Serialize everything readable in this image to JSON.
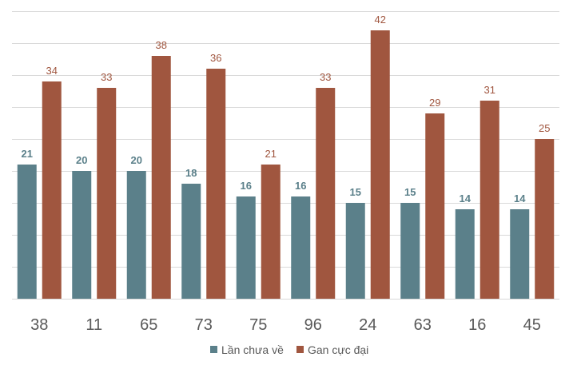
{
  "chart_data": {
    "type": "bar",
    "categories": [
      "38",
      "11",
      "65",
      "73",
      "75",
      "96",
      "24",
      "63",
      "16",
      "45"
    ],
    "series": [
      {
        "name": "Lần chưa về",
        "color": "#5b808a",
        "values": [
          21,
          20,
          20,
          18,
          16,
          16,
          15,
          15,
          14,
          14
        ]
      },
      {
        "name": "Gan cực đại",
        "color": "#a0563f",
        "values": [
          34,
          33,
          38,
          36,
          21,
          33,
          42,
          29,
          31,
          25
        ]
      }
    ],
    "ylim": [
      0,
      45
    ],
    "y_grid_step": 5,
    "grid": true,
    "y_tick_labels_shown": false,
    "data_labels": true,
    "legend_position": "bottom"
  }
}
